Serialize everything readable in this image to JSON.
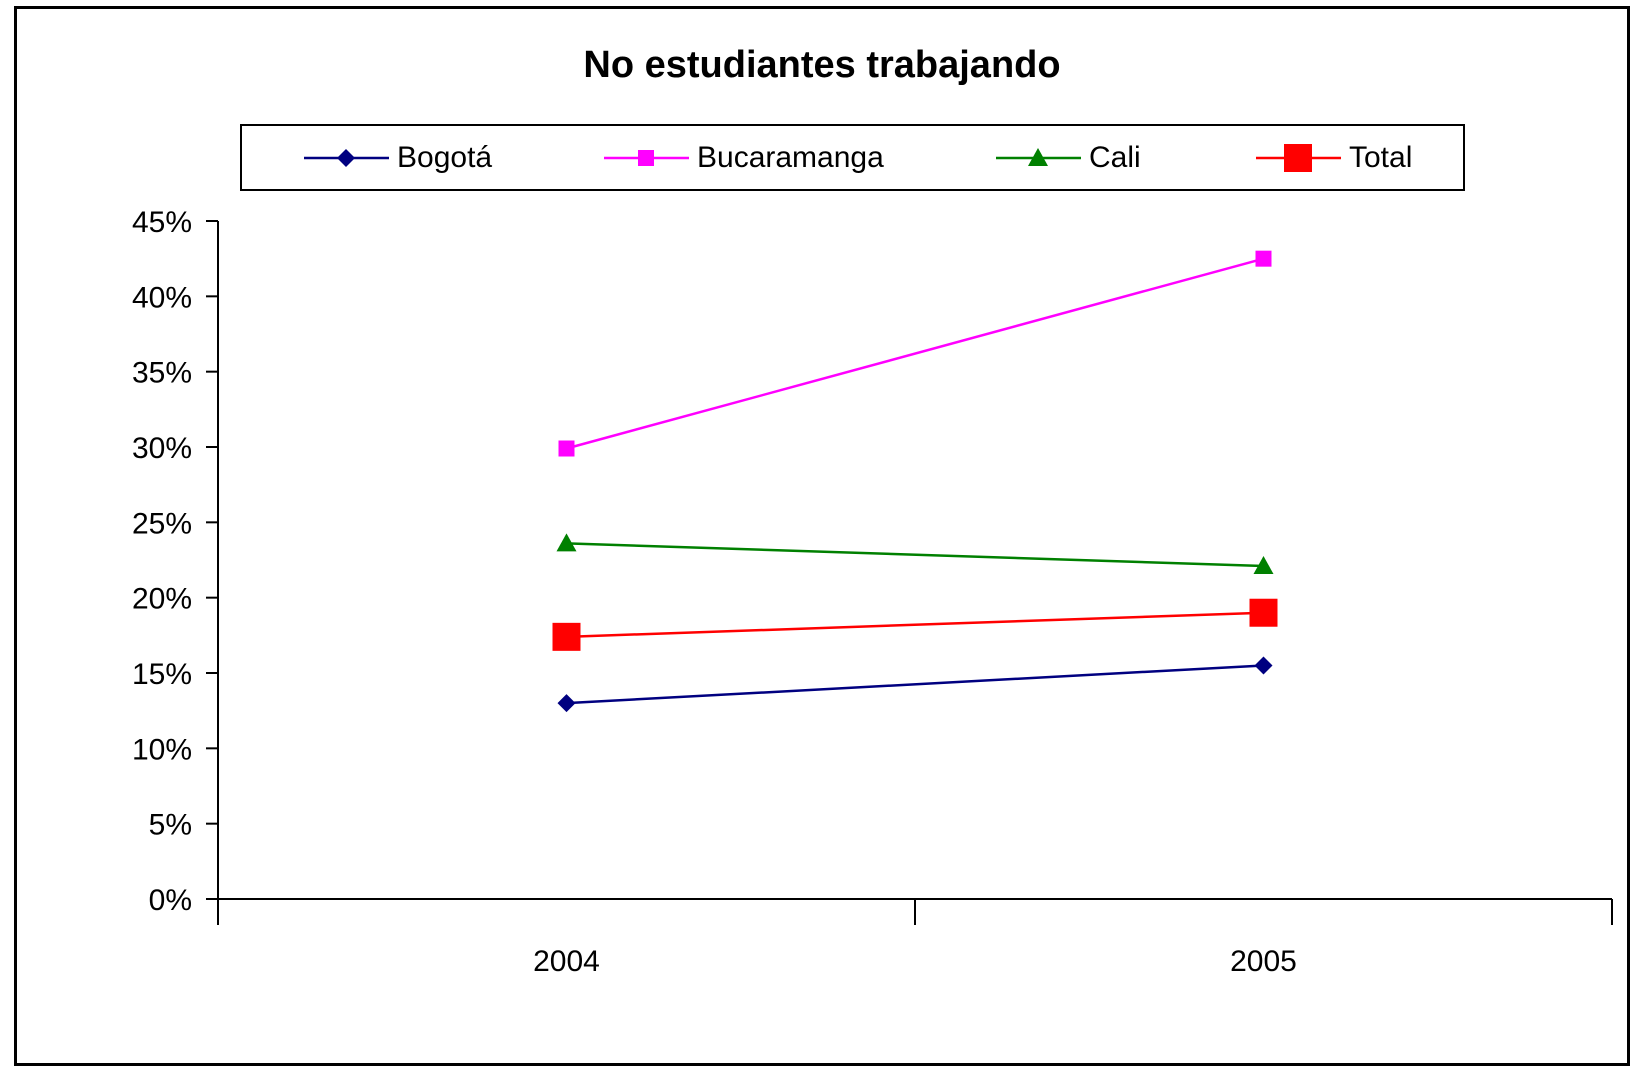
{
  "chart_data": {
    "type": "line",
    "title": "No estudiantes trabajando",
    "xlabel": "",
    "ylabel": "",
    "categories": [
      "2004",
      "2005"
    ],
    "ylim": [
      0,
      0.45
    ],
    "yticks": [
      "0%",
      "5%",
      "10%",
      "15%",
      "20%",
      "25%",
      "30%",
      "35%",
      "40%",
      "45%"
    ],
    "grid": false,
    "legend_position": "top",
    "series": [
      {
        "name": "Bogotá",
        "values": [
          0.13,
          0.155
        ],
        "color": "#000080",
        "marker": "diamond"
      },
      {
        "name": "Bucaramanga",
        "values": [
          0.299,
          0.425
        ],
        "color": "#ff00ff",
        "marker": "square-small"
      },
      {
        "name": "Cali",
        "values": [
          0.236,
          0.221
        ],
        "color": "#008000",
        "marker": "triangle"
      },
      {
        "name": "Total",
        "values": [
          0.174,
          0.19
        ],
        "color": "#ff0000",
        "marker": "square-large"
      }
    ]
  }
}
